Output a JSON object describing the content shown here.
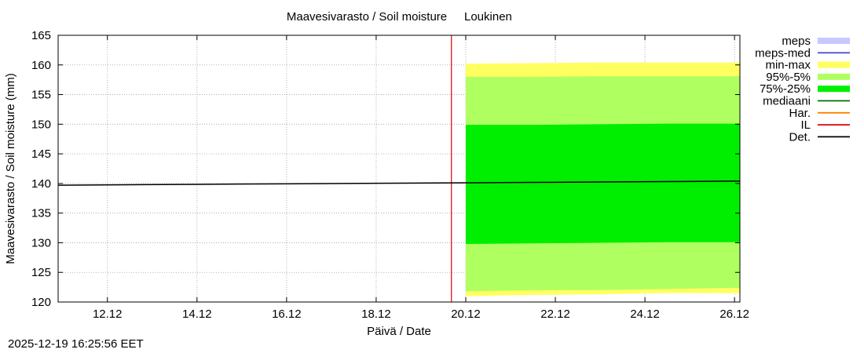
{
  "chart_data": {
    "type": "area",
    "title": "Maavesivarasto / Soil moisture",
    "location": "Loukinen",
    "xlabel": "Päivä / Date",
    "ylabel": "Maavesivarasto / Soil moisture (mm)",
    "x_range_days": [
      10.9,
      26.12
    ],
    "ylim": [
      120,
      165
    ],
    "y_ticks": [
      120,
      125,
      130,
      135,
      140,
      145,
      150,
      155,
      160,
      165
    ],
    "x_ticks": [
      {
        "day": 12,
        "label": "12.12"
      },
      {
        "day": 14,
        "label": "14.12"
      },
      {
        "day": 16,
        "label": "16.12"
      },
      {
        "day": 18,
        "label": "18.12"
      },
      {
        "day": 20,
        "label": "20.12"
      },
      {
        "day": 22,
        "label": "22.12"
      },
      {
        "day": 24,
        "label": "24.12"
      },
      {
        "day": 26,
        "label": "26.12"
      }
    ],
    "grid": true,
    "legend_position": "right",
    "legend": [
      {
        "label": "meps",
        "kind": "box",
        "color": "#c8c8ff"
      },
      {
        "label": "meps-med",
        "kind": "line",
        "color": "#5050d0"
      },
      {
        "label": "min-max",
        "kind": "box",
        "color": "#ffff60"
      },
      {
        "label": "95%-5%",
        "kind": "box",
        "color": "#b0ff60"
      },
      {
        "label": "75%-25%",
        "kind": "box",
        "color": "#00ee00"
      },
      {
        "label": "mediaani",
        "kind": "line",
        "color": "#007000"
      },
      {
        "label": "Har.",
        "kind": "line",
        "color": "#ff8000"
      },
      {
        "label": "IL",
        "kind": "line",
        "color": "#e00000"
      },
      {
        "label": "Det.",
        "kind": "line",
        "color": "#000000"
      }
    ],
    "il_marker_day": 19.68,
    "bands": [
      {
        "name": "min-max",
        "color": "#ffff60",
        "x": [
          20.0,
          21.5,
          23.0,
          24.5,
          26.12
        ],
        "low": [
          121.0,
          121.2,
          121.3,
          121.5,
          121.5
        ],
        "high": [
          160.2,
          160.3,
          160.4,
          160.4,
          160.4
        ]
      },
      {
        "name": "95%-5%",
        "color": "#b0ff60",
        "x": [
          20.0,
          21.5,
          23.0,
          24.5,
          26.12
        ],
        "low": [
          121.8,
          122.0,
          122.0,
          122.2,
          122.4
        ],
        "high": [
          158.0,
          158.0,
          158.1,
          158.1,
          158.1
        ]
      },
      {
        "name": "75%-25%",
        "color": "#00ee00",
        "x": [
          20.0,
          21.5,
          23.0,
          24.5,
          26.12
        ],
        "low": [
          129.8,
          129.9,
          130.0,
          130.1,
          130.1
        ],
        "high": [
          149.9,
          149.9,
          150.0,
          150.1,
          150.1
        ]
      }
    ],
    "series": [
      {
        "name": "Det.",
        "color": "#000000",
        "x": [
          10.9,
          12.8,
          14.9,
          17.3,
          19.68,
          22.0,
          24.0,
          26.12
        ],
        "y": [
          139.7,
          139.8,
          139.9,
          140.0,
          140.1,
          140.2,
          140.3,
          140.4
        ]
      }
    ]
  },
  "timestamp": "2025-12-19 16:25:56 EET"
}
